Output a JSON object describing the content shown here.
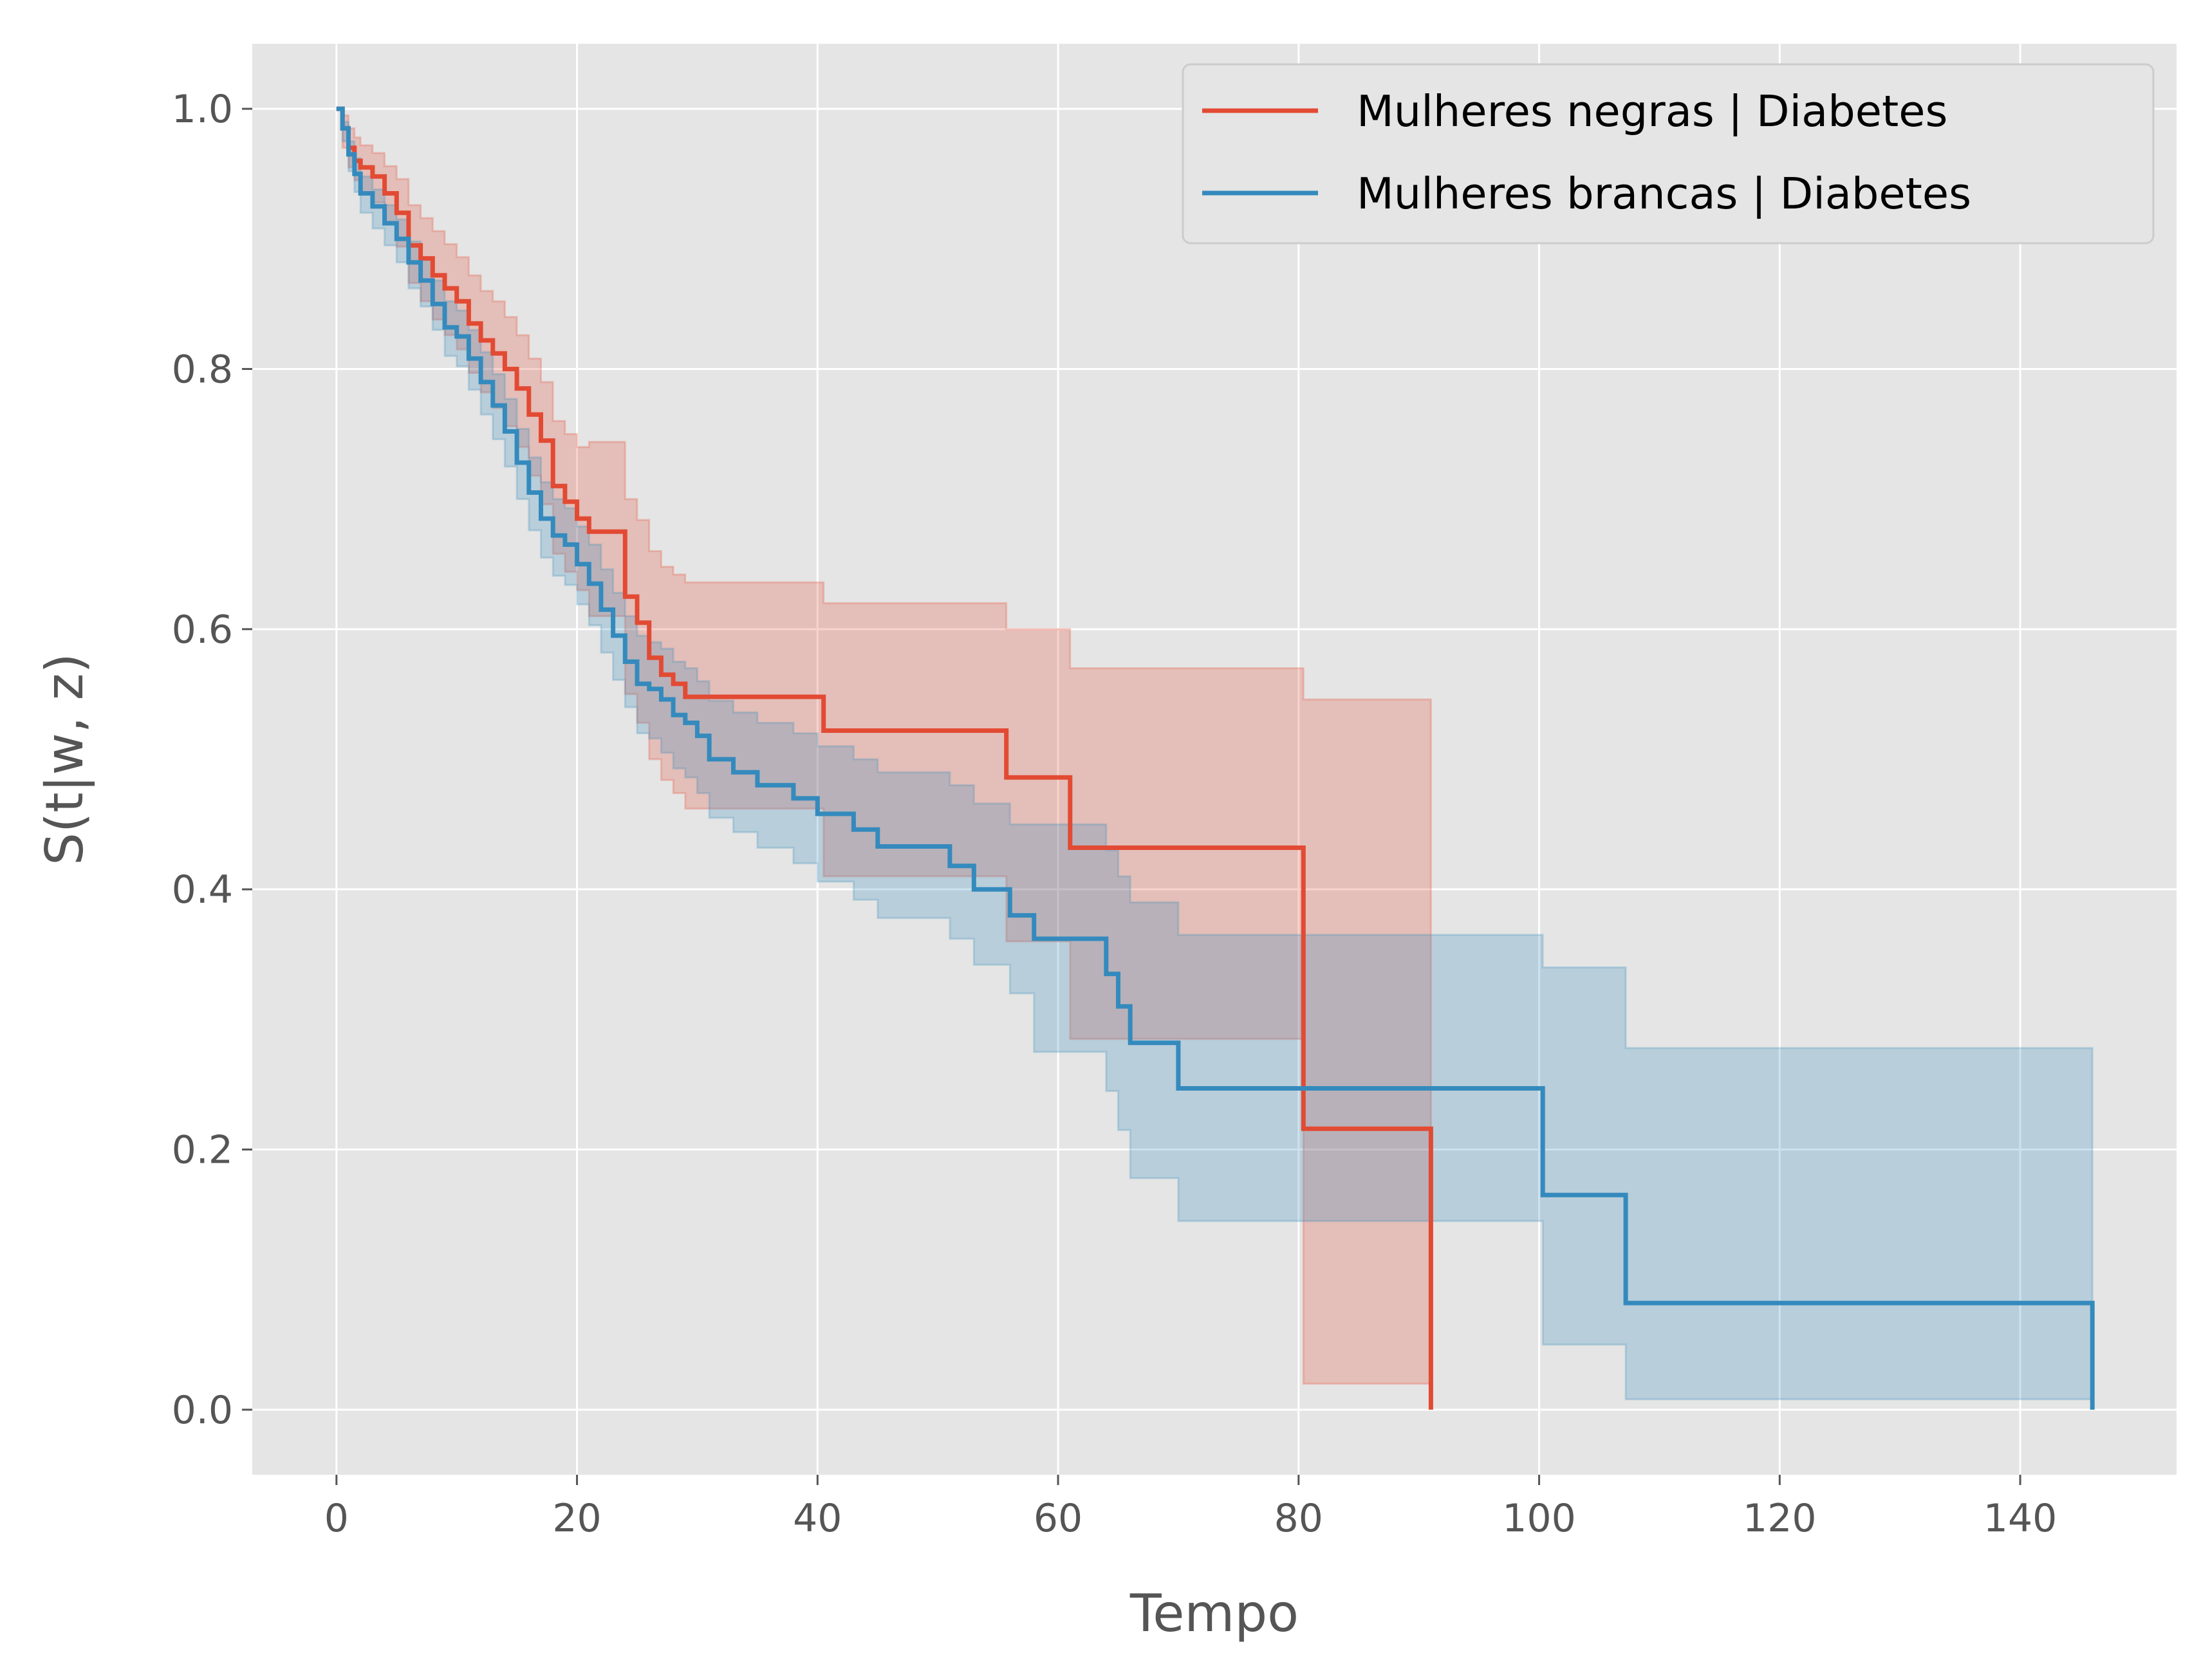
{
  "chart_data": {
    "type": "line",
    "subtype": "step (Kaplan-Meier survival curves with confidence bands)",
    "title": "",
    "xlabel": "Tempo",
    "ylabel": "S(t|w, z)",
    "xlim": [
      -7,
      153
    ],
    "ylim": [
      -0.05,
      1.05
    ],
    "x_ticks": [
      "0",
      "20",
      "40",
      "60",
      "80",
      "100",
      "120",
      "140"
    ],
    "x_tick_values": [
      0,
      20,
      40,
      60,
      80,
      100,
      120,
      140
    ],
    "y_ticks": [
      "0.0",
      "0.2",
      "0.4",
      "0.6",
      "0.8",
      "1.0"
    ],
    "y_tick_values": [
      0.0,
      0.2,
      0.4,
      0.6,
      0.8,
      1.0
    ],
    "grid": true,
    "legend_position": "top-right",
    "background": "#E5E5E5",
    "series": [
      {
        "name": "Mulheres negras | Diabetes",
        "color": "#E24A33",
        "x": [
          0,
          0.5,
          1,
          1.5,
          2,
          3,
          4,
          5,
          6,
          7,
          8,
          9,
          10,
          11,
          12,
          13,
          14,
          15,
          16,
          17,
          18,
          19,
          20,
          21,
          22,
          24,
          25,
          26,
          27,
          28,
          29,
          30,
          40.5,
          55.7,
          61,
          80.4,
          91
        ],
        "y": [
          1.0,
          0.985,
          0.97,
          0.96,
          0.955,
          0.948,
          0.935,
          0.92,
          0.895,
          0.885,
          0.872,
          0.862,
          0.852,
          0.835,
          0.822,
          0.812,
          0.8,
          0.785,
          0.765,
          0.745,
          0.71,
          0.698,
          0.685,
          0.675,
          0.675,
          0.625,
          0.605,
          0.578,
          0.565,
          0.558,
          0.548,
          0.548,
          0.522,
          0.486,
          0.432,
          0.216,
          0.0
        ],
        "upper": [
          1.0,
          0.995,
          0.985,
          0.978,
          0.972,
          0.966,
          0.956,
          0.946,
          0.926,
          0.916,
          0.906,
          0.896,
          0.886,
          0.872,
          0.86,
          0.852,
          0.84,
          0.826,
          0.808,
          0.79,
          0.76,
          0.75,
          0.74,
          0.744,
          0.744,
          0.7,
          0.684,
          0.66,
          0.648,
          0.642,
          0.636,
          0.636,
          0.62,
          0.6,
          0.57,
          0.546,
          0.546
        ],
        "lower": [
          1.0,
          0.97,
          0.955,
          0.945,
          0.935,
          0.928,
          0.912,
          0.894,
          0.866,
          0.852,
          0.838,
          0.826,
          0.815,
          0.797,
          0.782,
          0.77,
          0.756,
          0.74,
          0.718,
          0.696,
          0.658,
          0.644,
          0.63,
          0.61,
          0.61,
          0.55,
          0.528,
          0.5,
          0.484,
          0.474,
          0.462,
          0.462,
          0.41,
          0.36,
          0.285,
          0.02,
          0.02
        ]
      },
      {
        "name": "Mulheres brancas | Diabetes",
        "color": "#348ABD",
        "x": [
          0,
          0.5,
          1,
          1.5,
          2,
          3,
          4,
          5,
          6,
          7,
          8,
          9,
          10,
          11,
          12,
          13,
          14,
          15,
          16,
          17,
          18,
          19,
          20,
          21,
          22,
          23,
          24,
          25,
          26,
          27,
          28,
          29,
          30,
          31,
          33,
          35,
          38,
          40,
          43,
          45,
          51,
          53,
          56,
          58,
          64,
          65,
          66,
          70,
          100.3,
          107.2,
          146
        ],
        "y": [
          1.0,
          0.985,
          0.965,
          0.95,
          0.935,
          0.925,
          0.912,
          0.9,
          0.882,
          0.868,
          0.85,
          0.832,
          0.825,
          0.808,
          0.79,
          0.772,
          0.752,
          0.728,
          0.705,
          0.685,
          0.672,
          0.665,
          0.65,
          0.635,
          0.615,
          0.595,
          0.575,
          0.558,
          0.554,
          0.546,
          0.534,
          0.528,
          0.518,
          0.5,
          0.49,
          0.48,
          0.47,
          0.458,
          0.446,
          0.433,
          0.418,
          0.4,
          0.38,
          0.362,
          0.335,
          0.31,
          0.282,
          0.247,
          0.165,
          0.082,
          0.0
        ],
        "upper": [
          1.0,
          0.99,
          0.975,
          0.962,
          0.948,
          0.938,
          0.926,
          0.915,
          0.898,
          0.885,
          0.868,
          0.852,
          0.845,
          0.83,
          0.813,
          0.796,
          0.777,
          0.754,
          0.732,
          0.713,
          0.7,
          0.693,
          0.679,
          0.665,
          0.646,
          0.628,
          0.61,
          0.595,
          0.59,
          0.585,
          0.575,
          0.57,
          0.56,
          0.545,
          0.536,
          0.528,
          0.52,
          0.51,
          0.5,
          0.49,
          0.48,
          0.466,
          0.45,
          0.45,
          0.43,
          0.41,
          0.39,
          0.365,
          0.34,
          0.278,
          0.278
        ],
        "lower": [
          1.0,
          0.975,
          0.952,
          0.936,
          0.92,
          0.908,
          0.895,
          0.882,
          0.862,
          0.848,
          0.83,
          0.81,
          0.802,
          0.784,
          0.765,
          0.746,
          0.725,
          0.7,
          0.676,
          0.655,
          0.641,
          0.634,
          0.619,
          0.603,
          0.582,
          0.561,
          0.54,
          0.52,
          0.516,
          0.505,
          0.493,
          0.486,
          0.474,
          0.455,
          0.444,
          0.432,
          0.42,
          0.406,
          0.392,
          0.378,
          0.362,
          0.342,
          0.32,
          0.275,
          0.245,
          0.215,
          0.178,
          0.145,
          0.05,
          0.008,
          0.008
        ]
      }
    ]
  }
}
